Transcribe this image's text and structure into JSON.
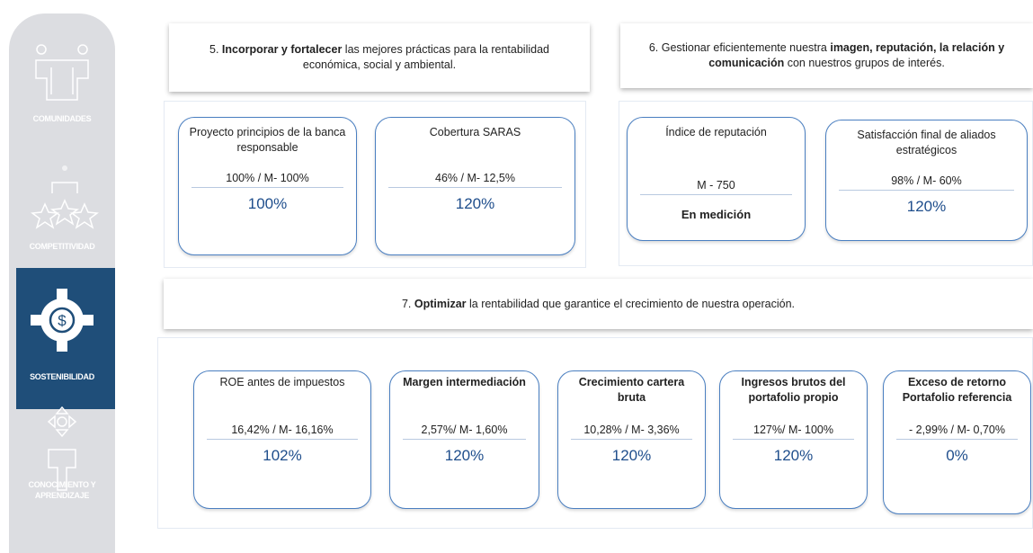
{
  "sidebar": [
    {
      "label": "COMUNIDADES"
    },
    {
      "label": "COMPETITIVIDAD"
    },
    {
      "label": "SOSTENIBILIDAD",
      "active": true
    },
    {
      "label": "CONOCIMIENTO Y APRENDIZAJE"
    }
  ],
  "objectives": [
    {
      "text": [
        {
          "text": "5. "
        },
        {
          "text": "Incorporar y fortalecer",
          "bold": true
        },
        {
          "text": " las mejores prácticas para la rentabilidad económica, social y ambiental."
        }
      ],
      "indicators": [
        {
          "title": "Proyecto principios de la banca responsable",
          "meta": "100% / M- 100%",
          "result": "100%"
        },
        {
          "title": "Cobertura SARAS",
          "meta": "46% / M- 12,5%",
          "result": "120%"
        }
      ]
    },
    {
      "text": [
        {
          "text": "6. Gestionar eficientemente nuestra "
        },
        {
          "text": "imagen, reputación, la relación y comunicación",
          "bold": true
        },
        {
          "text": " con nuestros grupos de interés."
        }
      ],
      "indicators": [
        {
          "title": "Índice de reputación",
          "meta": "M - 750",
          "result": "En medición"
        },
        {
          "title": "Satisfacción final de aliados estratégicos",
          "meta": "98% / M- 60%",
          "result": "120%"
        }
      ]
    },
    {
      "text": [
        {
          "text": "7. "
        },
        {
          "text": "Optimizar",
          "bold": true
        },
        {
          "text": " la rentabilidad que garantice el crecimiento de nuestra operación."
        }
      ],
      "indicators": [
        {
          "title": "ROE antes de impuestos",
          "meta": "16,42% / M- 16,16%",
          "result": "102%"
        },
        {
          "title": "Margen intermediación",
          "meta": "2,57%/ M- 1,60%",
          "result": "120%"
        },
        {
          "title": "Crecimiento cartera bruta",
          "meta": "10,28% / M- 3,36%",
          "result": "120%"
        },
        {
          "title": "Ingresos brutos del portafolio propio",
          "meta": "127%/ M- 100%",
          "result": "120%"
        },
        {
          "title": "Exceso de retorno Portafolio referencia",
          "meta": "- 2,99% / M- 0,70%",
          "result": "0%"
        }
      ]
    }
  ]
}
